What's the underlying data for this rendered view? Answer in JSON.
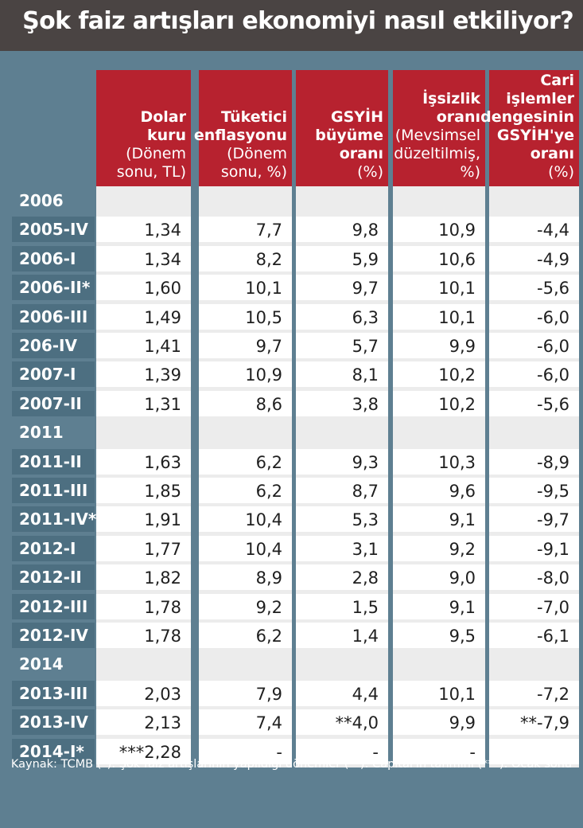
{
  "title": "Şok faiz artışları ekonomiyi nasıl etkiliyor?",
  "columns": [
    {
      "bold": [
        "Dolar kuru"
      ],
      "normal": [
        "(Dönem",
        "sonu, TL)"
      ]
    },
    {
      "bold": [
        "Tüketici",
        "enflasyonu"
      ],
      "normal": [
        "(Dönem",
        "sonu, %)"
      ]
    },
    {
      "bold": [
        "GSYİH",
        "büyüme",
        "oranı"
      ],
      "normal": [
        "(%)"
      ]
    },
    {
      "bold": [
        "İşsizlik",
        "oranı"
      ],
      "normal": [
        "(Mevsimsel",
        "düzeltilmiş,",
        "%)"
      ]
    },
    {
      "bold": [
        "Cari",
        "işlemler",
        "dengesinin",
        "GSYİH'ye",
        "oranı"
      ],
      "normal": [
        "(%)"
      ]
    }
  ],
  "rows": [
    {
      "label": "2006",
      "year": true,
      "values": [
        "",
        "",
        "",
        "",
        ""
      ]
    },
    {
      "label": "2005-IV",
      "values": [
        "1,34",
        "7,7",
        "9,8",
        "10,9",
        "-4,4"
      ]
    },
    {
      "label": "2006-I",
      "values": [
        "1,34",
        "8,2",
        "5,9",
        "10,6",
        "-4,9"
      ]
    },
    {
      "label": "2006-II*",
      "values": [
        "1,60",
        "10,1",
        "9,7",
        "10,1",
        "-5,6"
      ]
    },
    {
      "label": "2006-III",
      "values": [
        "1,49",
        "10,5",
        "6,3",
        "10,1",
        "-6,0"
      ]
    },
    {
      "label": "206-IV",
      "values": [
        "1,41",
        "9,7",
        "5,7",
        "9,9",
        "-6,0"
      ]
    },
    {
      "label": "2007-I",
      "values": [
        "1,39",
        "10,9",
        "8,1",
        "10,2",
        "-6,0"
      ]
    },
    {
      "label": "2007-II",
      "values": [
        "1,31",
        "8,6",
        "3,8",
        "10,2",
        "-5,6"
      ]
    },
    {
      "label": "2011",
      "year": true,
      "values": [
        "",
        "",
        "",
        "",
        ""
      ]
    },
    {
      "label": "2011-II",
      "values": [
        "1,63",
        "6,2",
        "9,3",
        "10,3",
        "-8,9"
      ]
    },
    {
      "label": "2011-III",
      "values": [
        "1,85",
        "6,2",
        "8,7",
        "9,6",
        "-9,5"
      ]
    },
    {
      "label": "2011-IV*",
      "values": [
        "1,91",
        "10,4",
        "5,3",
        "9,1",
        "-9,7"
      ]
    },
    {
      "label": "2012-I",
      "values": [
        "1,77",
        "10,4",
        "3,1",
        "9,2",
        "-9,1"
      ]
    },
    {
      "label": "2012-II",
      "values": [
        "1,82",
        "8,9",
        "2,8",
        "9,0",
        "-8,0"
      ]
    },
    {
      "label": "2012-III",
      "values": [
        "1,78",
        "9,2",
        "1,5",
        "9,1",
        "-7,0"
      ]
    },
    {
      "label": "2012-IV",
      "values": [
        "1,78",
        "6,2",
        "1,4",
        "9,5",
        "-6,1"
      ]
    },
    {
      "label": "2014",
      "year": true,
      "values": [
        "",
        "",
        "",
        "",
        ""
      ]
    },
    {
      "label": "2013-III",
      "values": [
        "2,03",
        "7,9",
        "4,4",
        "10,1",
        "-7,2"
      ]
    },
    {
      "label": "2013-IV",
      "values": [
        "2,13",
        "7,4",
        "**4,0",
        "9,9",
        "**-7,9"
      ]
    },
    {
      "label": "2014-I*",
      "values": [
        "***2,28",
        "-",
        "-",
        "-",
        ""
      ]
    }
  ],
  "footer": "Kaynak: TCMB    (*): Şok faiz artışlarının yapıldığı dönemler   (**): Capital'in tahmini   (***): Ocak sonu"
}
